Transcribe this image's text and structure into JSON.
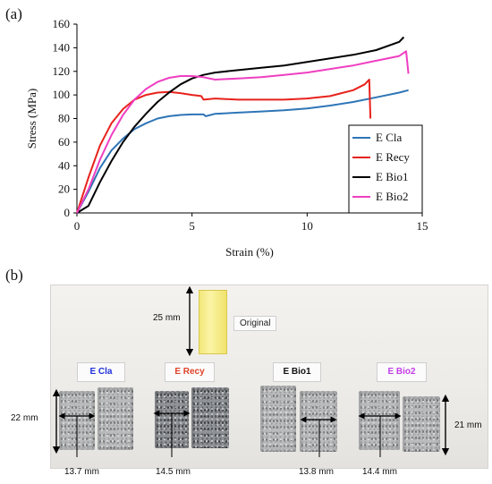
{
  "panel_a_label": "(a)",
  "panel_b_label": "(b)",
  "chart_data": {
    "type": "line",
    "xlabel": "Strain (%)",
    "ylabel": "Stress (MPa)",
    "xlim": [
      0,
      15
    ],
    "ylim": [
      0,
      160
    ],
    "xticks": [
      0,
      5,
      10,
      15
    ],
    "yticks": [
      0,
      20,
      40,
      60,
      80,
      100,
      120,
      140,
      160
    ],
    "grid": false,
    "legend_position": "bottom-right",
    "series": [
      {
        "name": "E Cla",
        "color": "#2e75b6",
        "x": [
          0,
          0.5,
          1,
          1.5,
          2,
          2.5,
          3,
          3.5,
          4,
          4.5,
          5,
          5.5,
          5.6,
          6,
          7,
          8,
          9,
          10,
          11,
          12,
          13,
          14,
          14.4
        ],
        "y": [
          0,
          18,
          38,
          53,
          63,
          71,
          76,
          80,
          82,
          83,
          83.5,
          83.5,
          82,
          84,
          85,
          86,
          87,
          88.5,
          91,
          94,
          98,
          102,
          104
        ]
      },
      {
        "name": "E Recy",
        "color": "#e8221c",
        "x": [
          0,
          0.5,
          1,
          1.5,
          2,
          2.5,
          3,
          3.5,
          4,
          4.5,
          5,
          5.4,
          5.5,
          6,
          7,
          8,
          9,
          10,
          11,
          12,
          12.5,
          12.7,
          12.75
        ],
        "y": [
          0,
          30,
          57,
          76,
          88,
          96,
          100,
          102,
          102.5,
          101.5,
          100,
          99,
          96,
          97,
          96,
          96,
          96,
          97,
          99,
          104,
          109,
          113,
          80
        ]
      },
      {
        "name": "E Bio1",
        "color": "#000000",
        "x": [
          0,
          0.5,
          1,
          1.5,
          2,
          2.5,
          3,
          3.5,
          4,
          4.5,
          5,
          5.5,
          6,
          7,
          8,
          9,
          10,
          11,
          12,
          13,
          14,
          14.2
        ],
        "y": [
          0,
          6,
          26,
          44,
          60,
          73,
          84,
          94,
          102,
          109,
          114,
          117,
          119,
          121,
          123,
          125,
          128,
          131,
          134,
          138,
          145,
          149
        ]
      },
      {
        "name": "E Bio2",
        "color": "#ef3fc1",
        "x": [
          0,
          0.5,
          1,
          1.5,
          2,
          2.5,
          3,
          3.5,
          4,
          4.5,
          5,
          5.5,
          6,
          7,
          8,
          9,
          10,
          11,
          12,
          13,
          14,
          14.3,
          14.4
        ],
        "y": [
          0,
          20,
          45,
          66,
          83,
          96,
          105,
          111,
          114.5,
          116,
          116,
          115,
          113,
          114,
          115,
          117,
          119,
          122,
          125,
          129,
          133,
          137,
          118
        ]
      }
    ]
  },
  "photo": {
    "original_label": "Original",
    "original_dim": "25 mm",
    "samples": [
      {
        "label": "E Cla",
        "color": "#1f2fd9"
      },
      {
        "label": "E Recy",
        "color": "#e0422a"
      },
      {
        "label": "E Bio1",
        "color": "#111111"
      },
      {
        "label": "E Bio2",
        "color": "#c43ee8"
      }
    ],
    "dims": {
      "height_left": "22 mm",
      "height_right": "21 mm",
      "width_cla": "13.7 mm",
      "width_recy": "14.5 mm",
      "width_bio1": "13.8 mm",
      "width_bio2": "14.4 mm"
    }
  }
}
